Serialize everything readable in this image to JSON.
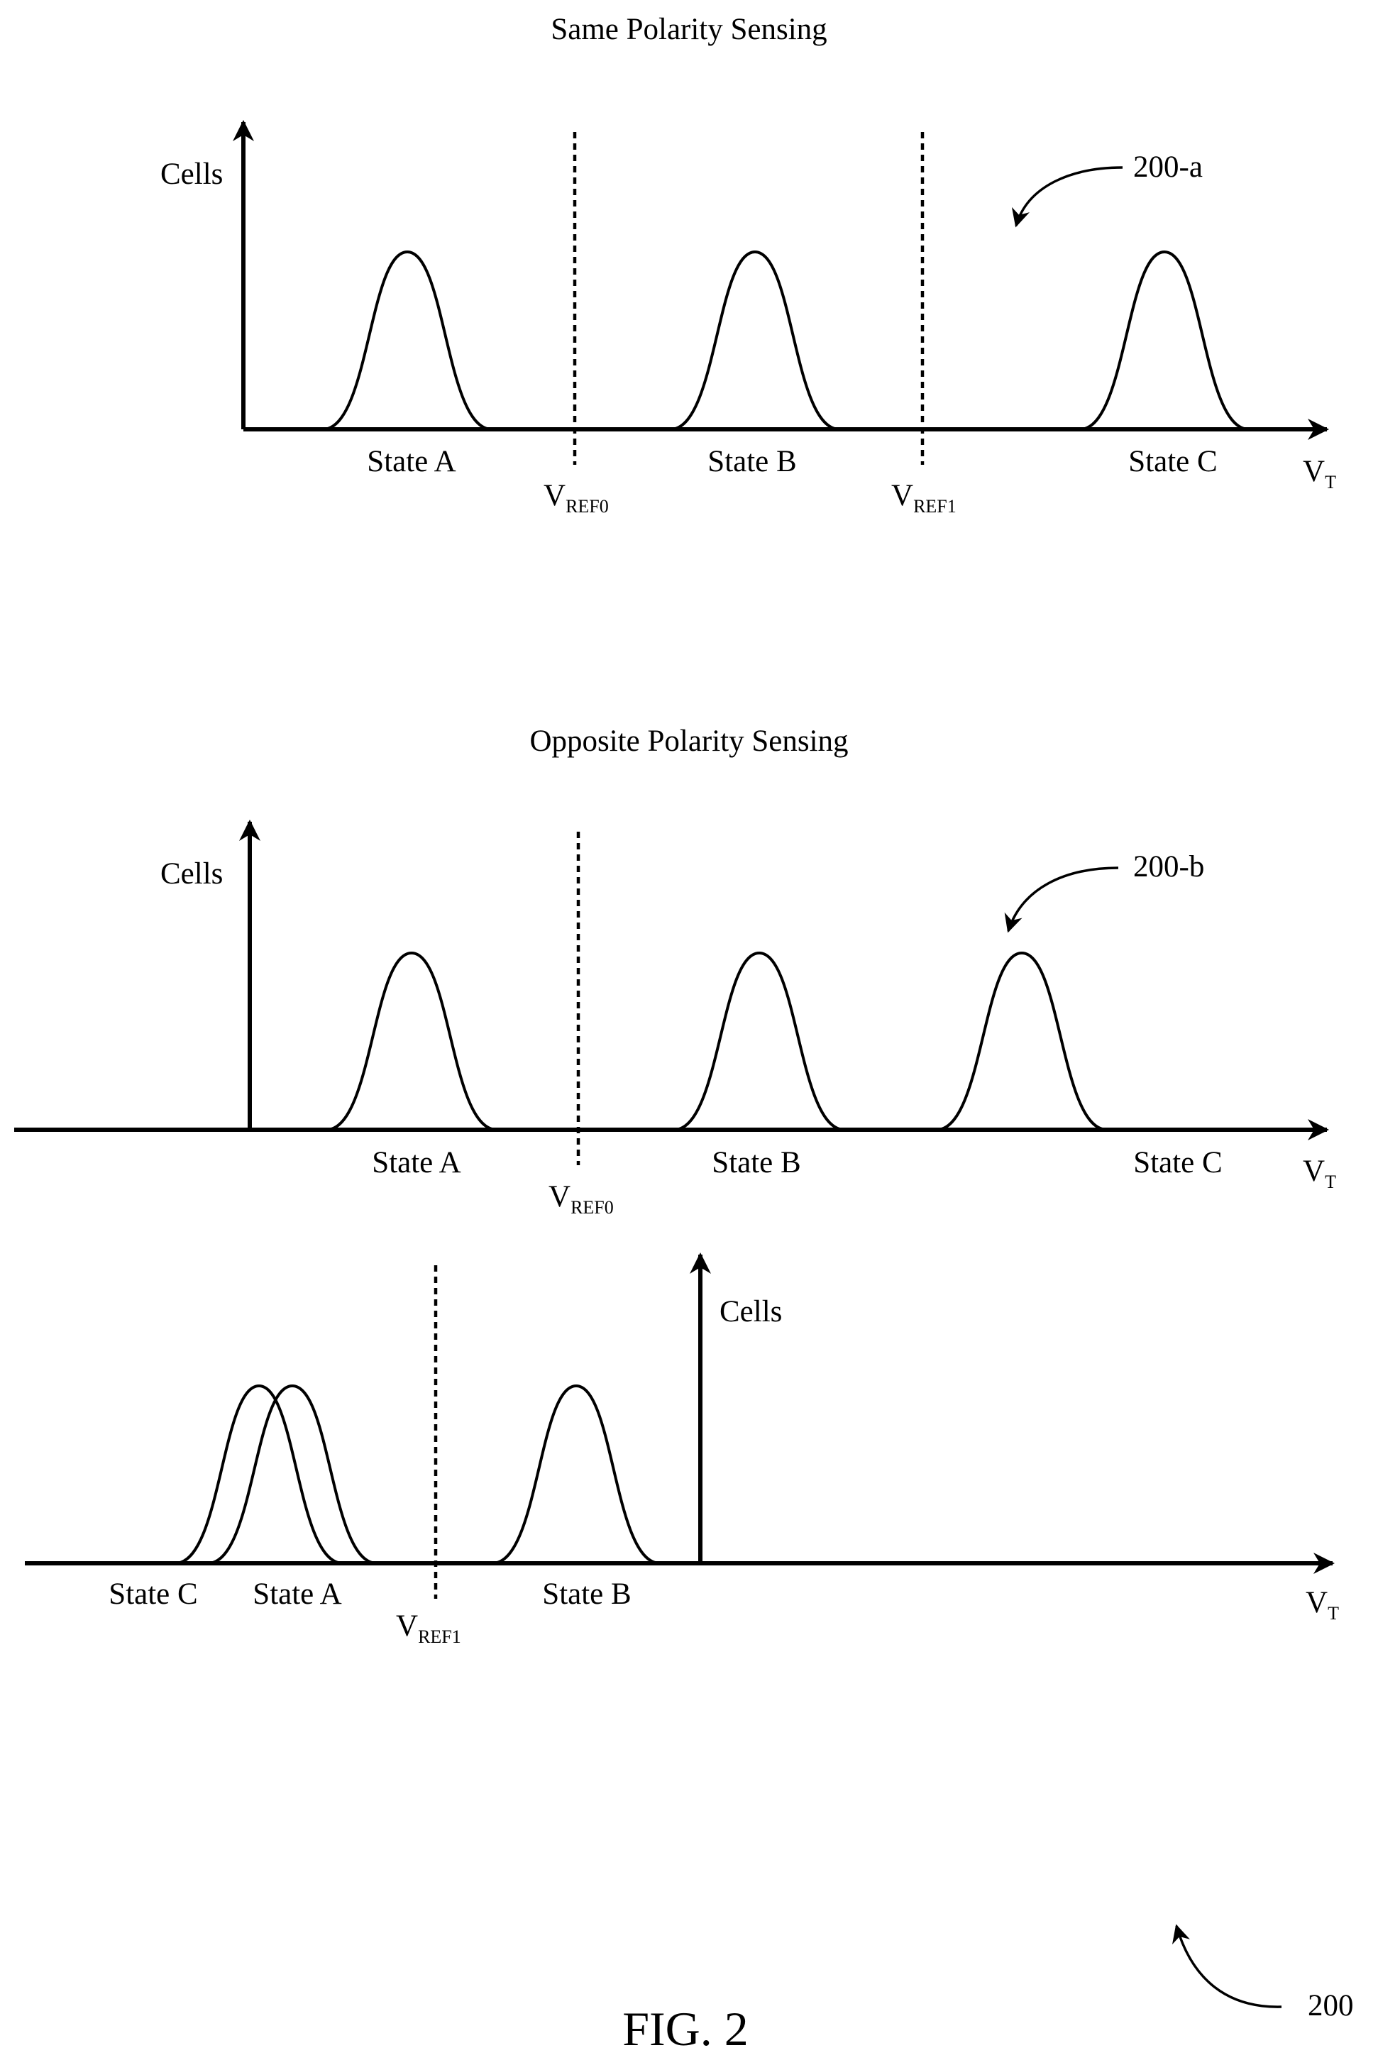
{
  "panel_a": {
    "title": "Same Polarity Sensing",
    "y_label": "Cells",
    "x_label_main": "V",
    "x_label_sub": "T",
    "states": [
      "State A",
      "State B",
      "State C"
    ],
    "refs": [
      {
        "main": "V",
        "sub": "REF0"
      },
      {
        "main": "V",
        "sub": "REF1"
      }
    ],
    "callout": "200-a"
  },
  "panel_b": {
    "title": "Opposite Polarity Sensing",
    "y_label": "Cells",
    "x_label_main": "V",
    "x_label_sub": "T",
    "states": [
      "State A",
      "State B",
      "State C"
    ],
    "ref": {
      "main": "V",
      "sub": "REF0"
    },
    "callout": "200-b"
  },
  "panel_c": {
    "y_label": "Cells",
    "x_label_main": "V",
    "x_label_sub": "T",
    "states": [
      "State C",
      "State A",
      "State B"
    ],
    "ref": {
      "main": "V",
      "sub": "REF1"
    }
  },
  "figure": {
    "number": "200",
    "caption": "FIG. 2"
  },
  "colors": {
    "ink": "#000000",
    "background": "#ffffff"
  }
}
